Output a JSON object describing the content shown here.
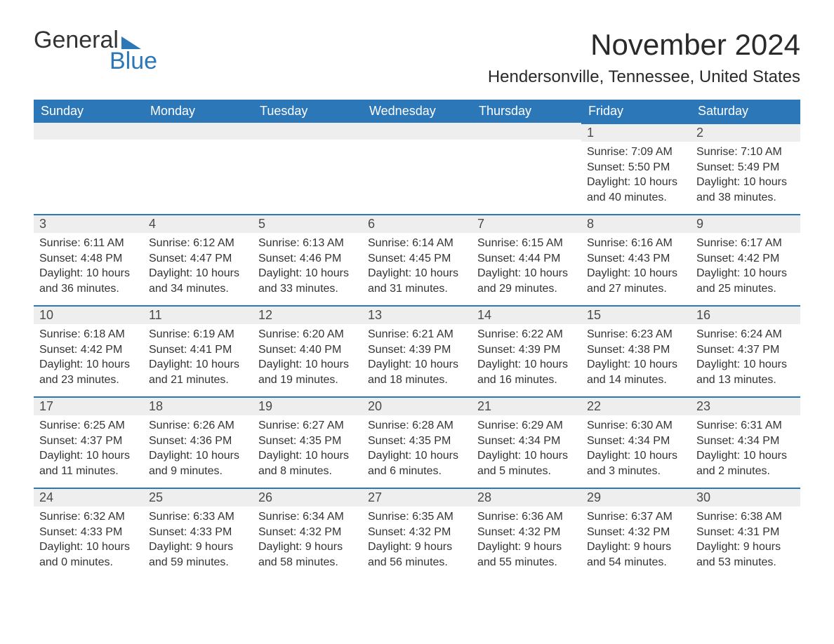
{
  "brand": {
    "word1": "General",
    "word2": "Blue"
  },
  "title": "November 2024",
  "location": "Hendersonville, Tennessee, United States",
  "colors": {
    "accent": "#2b77b8",
    "header_bg": "#2b77b8",
    "header_text": "#ffffff",
    "daynum_bg": "#eeeeee",
    "body_text": "#333333",
    "page_bg": "#ffffff"
  },
  "typography": {
    "title_fontsize_pt": 32,
    "location_fontsize_pt": 18,
    "header_fontsize_pt": 14,
    "daynum_fontsize_pt": 14,
    "body_fontsize_pt": 12,
    "font_family": "Arial"
  },
  "day_headers": [
    "Sunday",
    "Monday",
    "Tuesday",
    "Wednesday",
    "Thursday",
    "Friday",
    "Saturday"
  ],
  "weeks": [
    [
      null,
      null,
      null,
      null,
      null,
      {
        "n": "1",
        "sr": "Sunrise: 7:09 AM",
        "ss": "Sunset: 5:50 PM",
        "dl": "Daylight: 10 hours and 40 minutes."
      },
      {
        "n": "2",
        "sr": "Sunrise: 7:10 AM",
        "ss": "Sunset: 5:49 PM",
        "dl": "Daylight: 10 hours and 38 minutes."
      }
    ],
    [
      {
        "n": "3",
        "sr": "Sunrise: 6:11 AM",
        "ss": "Sunset: 4:48 PM",
        "dl": "Daylight: 10 hours and 36 minutes."
      },
      {
        "n": "4",
        "sr": "Sunrise: 6:12 AM",
        "ss": "Sunset: 4:47 PM",
        "dl": "Daylight: 10 hours and 34 minutes."
      },
      {
        "n": "5",
        "sr": "Sunrise: 6:13 AM",
        "ss": "Sunset: 4:46 PM",
        "dl": "Daylight: 10 hours and 33 minutes."
      },
      {
        "n": "6",
        "sr": "Sunrise: 6:14 AM",
        "ss": "Sunset: 4:45 PM",
        "dl": "Daylight: 10 hours and 31 minutes."
      },
      {
        "n": "7",
        "sr": "Sunrise: 6:15 AM",
        "ss": "Sunset: 4:44 PM",
        "dl": "Daylight: 10 hours and 29 minutes."
      },
      {
        "n": "8",
        "sr": "Sunrise: 6:16 AM",
        "ss": "Sunset: 4:43 PM",
        "dl": "Daylight: 10 hours and 27 minutes."
      },
      {
        "n": "9",
        "sr": "Sunrise: 6:17 AM",
        "ss": "Sunset: 4:42 PM",
        "dl": "Daylight: 10 hours and 25 minutes."
      }
    ],
    [
      {
        "n": "10",
        "sr": "Sunrise: 6:18 AM",
        "ss": "Sunset: 4:42 PM",
        "dl": "Daylight: 10 hours and 23 minutes."
      },
      {
        "n": "11",
        "sr": "Sunrise: 6:19 AM",
        "ss": "Sunset: 4:41 PM",
        "dl": "Daylight: 10 hours and 21 minutes."
      },
      {
        "n": "12",
        "sr": "Sunrise: 6:20 AM",
        "ss": "Sunset: 4:40 PM",
        "dl": "Daylight: 10 hours and 19 minutes."
      },
      {
        "n": "13",
        "sr": "Sunrise: 6:21 AM",
        "ss": "Sunset: 4:39 PM",
        "dl": "Daylight: 10 hours and 18 minutes."
      },
      {
        "n": "14",
        "sr": "Sunrise: 6:22 AM",
        "ss": "Sunset: 4:39 PM",
        "dl": "Daylight: 10 hours and 16 minutes."
      },
      {
        "n": "15",
        "sr": "Sunrise: 6:23 AM",
        "ss": "Sunset: 4:38 PM",
        "dl": "Daylight: 10 hours and 14 minutes."
      },
      {
        "n": "16",
        "sr": "Sunrise: 6:24 AM",
        "ss": "Sunset: 4:37 PM",
        "dl": "Daylight: 10 hours and 13 minutes."
      }
    ],
    [
      {
        "n": "17",
        "sr": "Sunrise: 6:25 AM",
        "ss": "Sunset: 4:37 PM",
        "dl": "Daylight: 10 hours and 11 minutes."
      },
      {
        "n": "18",
        "sr": "Sunrise: 6:26 AM",
        "ss": "Sunset: 4:36 PM",
        "dl": "Daylight: 10 hours and 9 minutes."
      },
      {
        "n": "19",
        "sr": "Sunrise: 6:27 AM",
        "ss": "Sunset: 4:35 PM",
        "dl": "Daylight: 10 hours and 8 minutes."
      },
      {
        "n": "20",
        "sr": "Sunrise: 6:28 AM",
        "ss": "Sunset: 4:35 PM",
        "dl": "Daylight: 10 hours and 6 minutes."
      },
      {
        "n": "21",
        "sr": "Sunrise: 6:29 AM",
        "ss": "Sunset: 4:34 PM",
        "dl": "Daylight: 10 hours and 5 minutes."
      },
      {
        "n": "22",
        "sr": "Sunrise: 6:30 AM",
        "ss": "Sunset: 4:34 PM",
        "dl": "Daylight: 10 hours and 3 minutes."
      },
      {
        "n": "23",
        "sr": "Sunrise: 6:31 AM",
        "ss": "Sunset: 4:34 PM",
        "dl": "Daylight: 10 hours and 2 minutes."
      }
    ],
    [
      {
        "n": "24",
        "sr": "Sunrise: 6:32 AM",
        "ss": "Sunset: 4:33 PM",
        "dl": "Daylight: 10 hours and 0 minutes."
      },
      {
        "n": "25",
        "sr": "Sunrise: 6:33 AM",
        "ss": "Sunset: 4:33 PM",
        "dl": "Daylight: 9 hours and 59 minutes."
      },
      {
        "n": "26",
        "sr": "Sunrise: 6:34 AM",
        "ss": "Sunset: 4:32 PM",
        "dl": "Daylight: 9 hours and 58 minutes."
      },
      {
        "n": "27",
        "sr": "Sunrise: 6:35 AM",
        "ss": "Sunset: 4:32 PM",
        "dl": "Daylight: 9 hours and 56 minutes."
      },
      {
        "n": "28",
        "sr": "Sunrise: 6:36 AM",
        "ss": "Sunset: 4:32 PM",
        "dl": "Daylight: 9 hours and 55 minutes."
      },
      {
        "n": "29",
        "sr": "Sunrise: 6:37 AM",
        "ss": "Sunset: 4:32 PM",
        "dl": "Daylight: 9 hours and 54 minutes."
      },
      {
        "n": "30",
        "sr": "Sunrise: 6:38 AM",
        "ss": "Sunset: 4:31 PM",
        "dl": "Daylight: 9 hours and 53 minutes."
      }
    ]
  ]
}
